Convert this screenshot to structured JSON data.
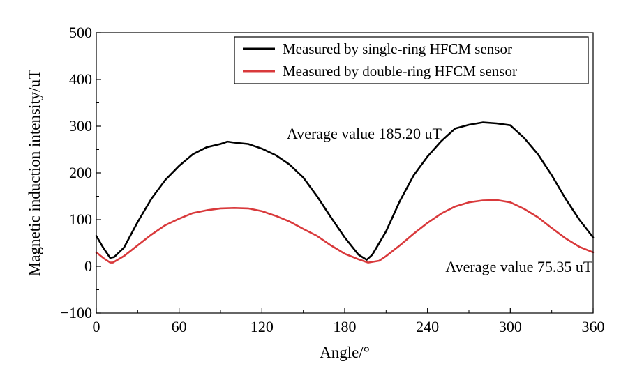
{
  "chart_data": {
    "type": "line",
    "xlabel": "Angle/°",
    "ylabel": "Magnetic induction intensity/uT",
    "xlim": [
      0,
      360
    ],
    "ylim": [
      -100,
      500
    ],
    "xticks": [
      0,
      60,
      120,
      180,
      240,
      300,
      360
    ],
    "yticks": [
      -100,
      0,
      100,
      200,
      300,
      400,
      500
    ],
    "xtick_labels": [
      "0",
      "60",
      "120",
      "180",
      "240",
      "300",
      "360"
    ],
    "ytick_labels": [
      "−100",
      "0",
      "100",
      "200",
      "300",
      "400",
      "500"
    ],
    "grid": false,
    "legend_position": "top-right",
    "series": [
      {
        "name": "Measured by single-ring HFCM sensor",
        "color": "#000000",
        "x": [
          0,
          5,
          10,
          13,
          20,
          30,
          40,
          50,
          60,
          70,
          80,
          90,
          95,
          100,
          110,
          120,
          130,
          140,
          150,
          160,
          170,
          180,
          190,
          196,
          200,
          210,
          220,
          230,
          240,
          250,
          260,
          270,
          280,
          290,
          300,
          310,
          320,
          330,
          340,
          350,
          360
        ],
        "values": [
          65,
          40,
          18,
          20,
          40,
          95,
          145,
          185,
          215,
          240,
          255,
          262,
          267,
          265,
          262,
          252,
          238,
          218,
          190,
          150,
          105,
          62,
          25,
          14,
          25,
          75,
          140,
          195,
          235,
          268,
          295,
          303,
          308,
          306,
          302,
          275,
          240,
          195,
          145,
          100,
          62
        ]
      },
      {
        "name": "Measured by double-ring HFCM sensor",
        "color": "#d9393b",
        "x": [
          0,
          5,
          10,
          12,
          20,
          30,
          40,
          50,
          60,
          70,
          80,
          90,
          100,
          110,
          120,
          130,
          140,
          150,
          160,
          170,
          180,
          190,
          197,
          205,
          210,
          220,
          230,
          240,
          250,
          260,
          270,
          280,
          290,
          300,
          310,
          320,
          330,
          340,
          350,
          360
        ],
        "values": [
          30,
          18,
          8,
          8,
          22,
          45,
          68,
          88,
          102,
          114,
          120,
          124,
          125,
          124,
          118,
          108,
          96,
          80,
          65,
          45,
          27,
          15,
          8,
          12,
          22,
          45,
          70,
          93,
          113,
          128,
          137,
          141,
          142,
          137,
          123,
          105,
          82,
          60,
          42,
          30
        ]
      }
    ],
    "annotations": [
      {
        "text": "Average value 185.20 uT",
        "x": 138,
        "y": 285
      },
      {
        "text": "Average value 75.35 uT",
        "x": 253,
        "y": 0
      }
    ]
  }
}
